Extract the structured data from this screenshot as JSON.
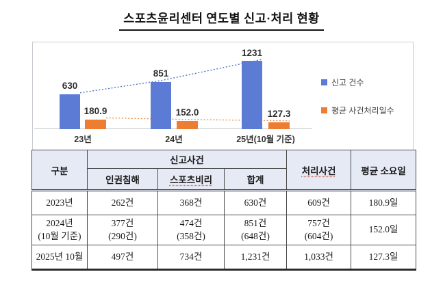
{
  "title": "스포츠윤리센터 연도별 신고·처리 현황",
  "chart_data": {
    "type": "bar",
    "title": "스포츠윤리센터 연도별 신고·처리 현황",
    "categories": [
      "23년",
      "24년",
      "25년(10월 기준)"
    ],
    "series": [
      {
        "name": "신고 건수",
        "values": [
          630,
          851,
          1231
        ],
        "data_labels": [
          "630",
          "851",
          "1231"
        ],
        "color": "#5B7BD5",
        "line_color": "#4A71C8"
      },
      {
        "name": "평균 사건처리일수",
        "values": [
          180.9,
          152.0,
          127.3
        ],
        "data_labels": [
          "180.9",
          "152.0",
          "127.3"
        ],
        "color": "#ED7D31",
        "line_color": "#E8914F"
      }
    ],
    "legend_position": "right",
    "grid": false,
    "trendline_style": "dotted",
    "xlabel": "",
    "ylabel": ""
  },
  "table": {
    "headers": {
      "group": "구분",
      "report_cases": "신고사건",
      "human_rights": "인권침해",
      "sports_corruption": "스포츠비리",
      "total": "합계",
      "processed": "처리사건",
      "avg_days": "평균 소요일"
    },
    "rows": [
      {
        "period": "2023년",
        "human_rights": "262건",
        "sports_corruption": "368건",
        "total": "630건",
        "processed": "609건",
        "avg_days": "180.9일"
      },
      {
        "period": "2024년\n(10월 기준)",
        "human_rights": "377건\n(290건)",
        "sports_corruption": "474건\n(358건)",
        "total": "851건\n(648건)",
        "processed": "757건\n(604건)",
        "avg_days": "152.0일"
      },
      {
        "period": "2025년 10월",
        "human_rights": "497건",
        "sports_corruption": "734건",
        "total": "1,231건",
        "processed": "1,033건",
        "avg_days": "127.3일"
      }
    ]
  }
}
